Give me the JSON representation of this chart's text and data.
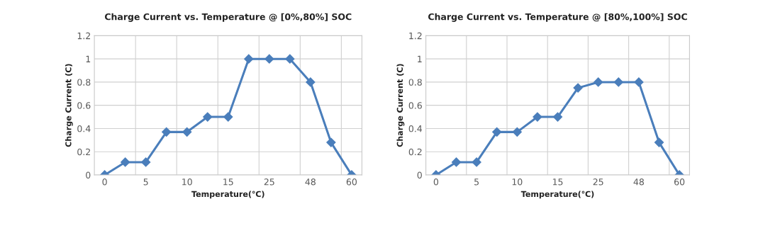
{
  "chart_data": [
    {
      "type": "line",
      "title": "Charge Current vs. Temperature @ [0%,80%] SOC",
      "xlabel": "Temperature(℃)",
      "ylabel": "Charge Current (C)",
      "categories": [
        "0",
        null,
        "5",
        null,
        "10",
        null,
        "15",
        null,
        "25",
        null,
        "48",
        null,
        "60"
      ],
      "series": [
        {
          "color": "#4a7ebb",
          "values": [
            0,
            0.11,
            0.11,
            0.37,
            0.37,
            0.5,
            0.5,
            1,
            1,
            1,
            0.8,
            0.28,
            0
          ]
        }
      ],
      "ylim": [
        0,
        1.2
      ],
      "yticks": [
        0,
        0.2,
        0.4,
        0.6,
        0.8,
        1,
        1.2
      ],
      "grid": true,
      "marker": "diamond",
      "line_style": "solid"
    },
    {
      "type": "line",
      "title": "Charge Current vs. Temperature @ [80%,100%] SOC",
      "xlabel": "Temperature(℃)",
      "ylabel": "Charge Current (C)",
      "categories": [
        "0",
        null,
        "5",
        null,
        "10",
        null,
        "15",
        null,
        "25",
        null,
        "48",
        null,
        "60"
      ],
      "series": [
        {
          "color": "#4a7ebb",
          "values": [
            0,
            0.11,
            0.11,
            0.37,
            0.37,
            0.5,
            0.5,
            0.75,
            0.8,
            0.8,
            0.8,
            0.28,
            0
          ]
        }
      ],
      "ylim": [
        0,
        1.2
      ],
      "yticks": [
        0,
        0.2,
        0.4,
        0.6,
        0.8,
        1,
        1.2
      ],
      "grid": true,
      "marker": "diamond",
      "line_style": "solid"
    }
  ]
}
